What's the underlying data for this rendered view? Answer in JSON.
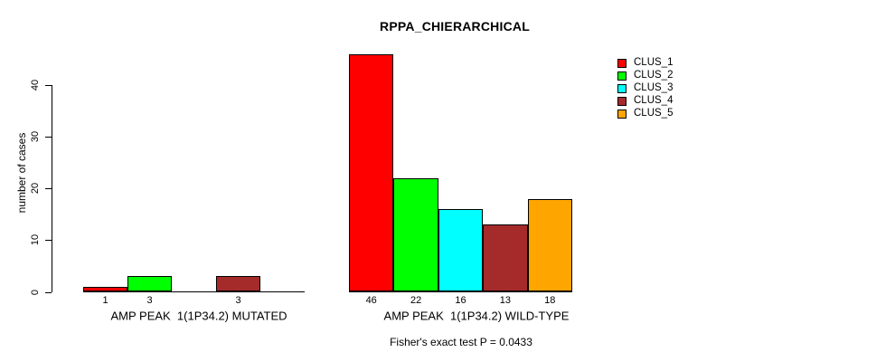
{
  "chart_data": {
    "type": "bar",
    "title": "RPPA_CHIERARCHICAL",
    "ylabel": "number of cases",
    "xlabel": "",
    "ylim": [
      0,
      46
    ],
    "yticks": [
      0,
      10,
      20,
      30,
      40
    ],
    "grid": false,
    "legend_position": "top-right",
    "categories": [
      "AMP PEAK  1(1P34.2) MUTATED",
      "AMP PEAK  1(1P34.2) WILD-TYPE"
    ],
    "series": [
      {
        "name": "CLUS_1",
        "color": "#FF0000",
        "values": [
          1,
          46
        ]
      },
      {
        "name": "CLUS_2",
        "color": "#00FF00",
        "values": [
          3,
          22
        ]
      },
      {
        "name": "CLUS_3",
        "color": "#00FFFF",
        "values": [
          0,
          16
        ]
      },
      {
        "name": "CLUS_4",
        "color": "#A52A2A",
        "values": [
          3,
          13
        ]
      },
      {
        "name": "CLUS_5",
        "color": "#FFA500",
        "values": [
          0,
          18
        ]
      }
    ],
    "bar_value_labels": [
      [
        "1",
        "3",
        "",
        "3",
        ""
      ],
      [
        "46",
        "22",
        "16",
        "13",
        "18"
      ]
    ],
    "footer": "Fisher's exact test P = 0.0433"
  }
}
